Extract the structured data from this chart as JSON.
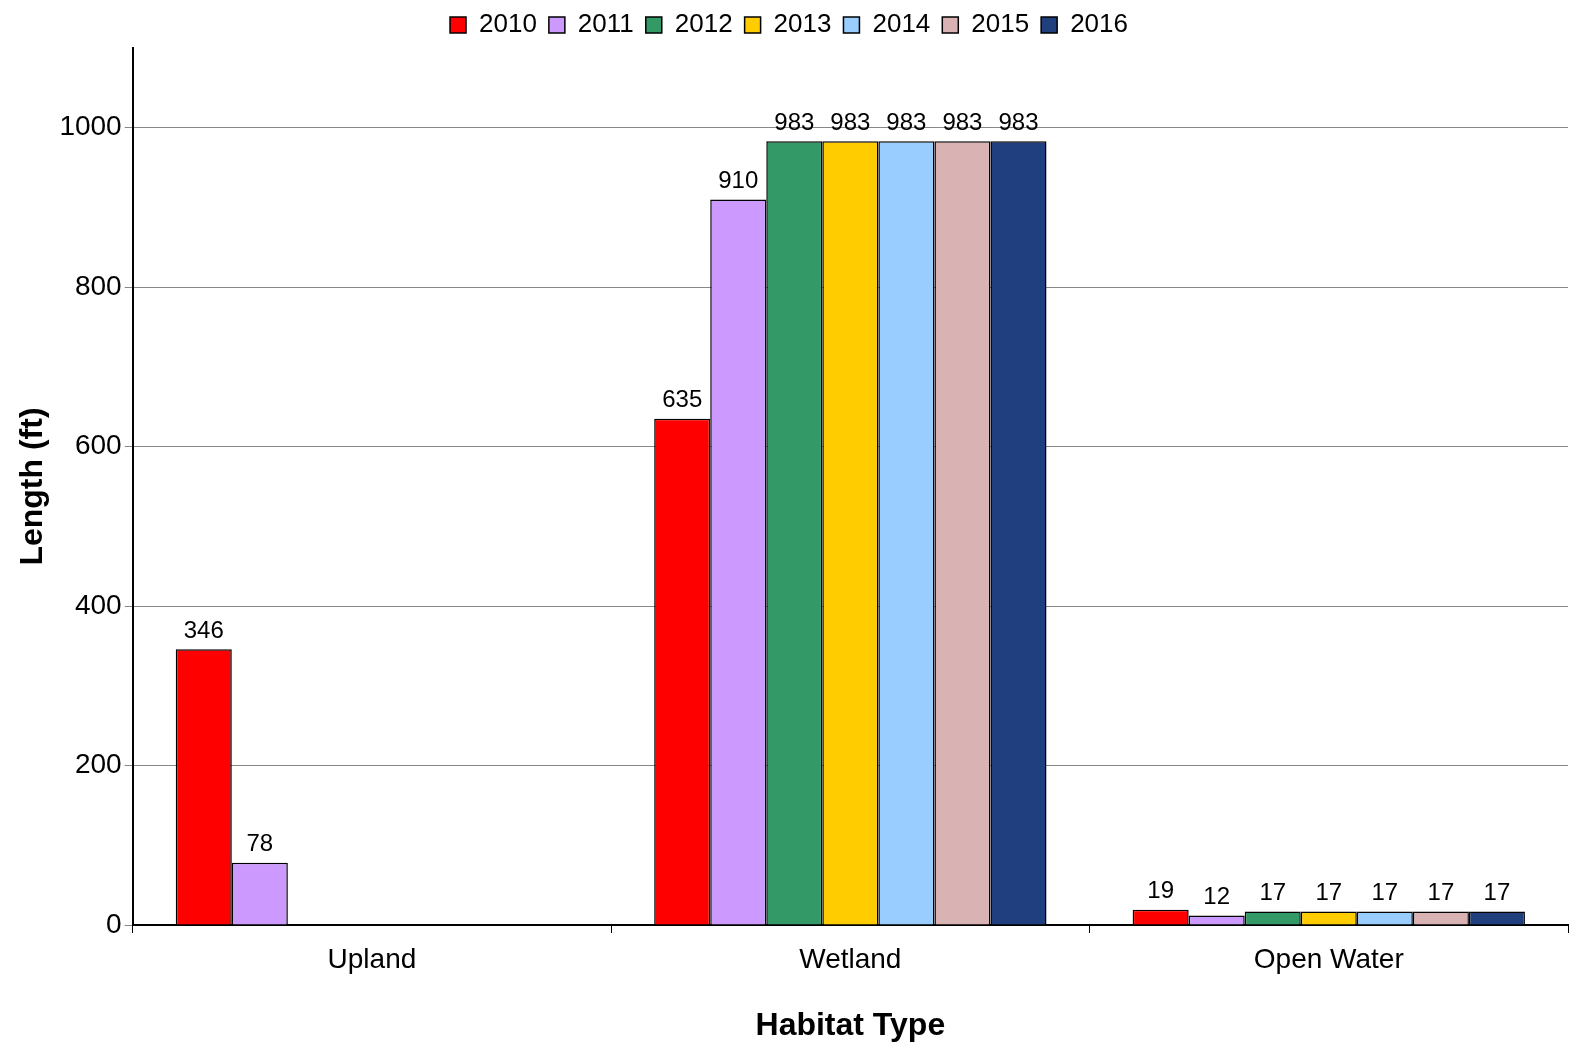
{
  "chart_data": {
    "type": "bar",
    "xlabel": "Habitat Type",
    "ylabel": "Length (ft)",
    "categories": [
      "Upland",
      "Wetland",
      "Open Water"
    ],
    "series": [
      {
        "name": "2010",
        "color": "#ff0000",
        "values": [
          346,
          635,
          19
        ]
      },
      {
        "name": "2011",
        "color": "#cc99ff",
        "values": [
          78,
          910,
          12
        ]
      },
      {
        "name": "2012",
        "color": "#339966",
        "values": [
          null,
          983,
          17
        ]
      },
      {
        "name": "2013",
        "color": "#ffcc00",
        "values": [
          null,
          983,
          17
        ]
      },
      {
        "name": "2014",
        "color": "#99ccff",
        "values": [
          null,
          983,
          17
        ]
      },
      {
        "name": "2015",
        "color": "#d9b3b3",
        "values": [
          null,
          983,
          17
        ]
      },
      {
        "name": "2016",
        "color": "#1f3f7f",
        "values": [
          null,
          983,
          17
        ]
      }
    ],
    "ylim": [
      0,
      1100
    ],
    "yticks": [
      0,
      200,
      400,
      600,
      800,
      1000
    ],
    "grid": "y",
    "legend": "top",
    "data_labels": true
  }
}
